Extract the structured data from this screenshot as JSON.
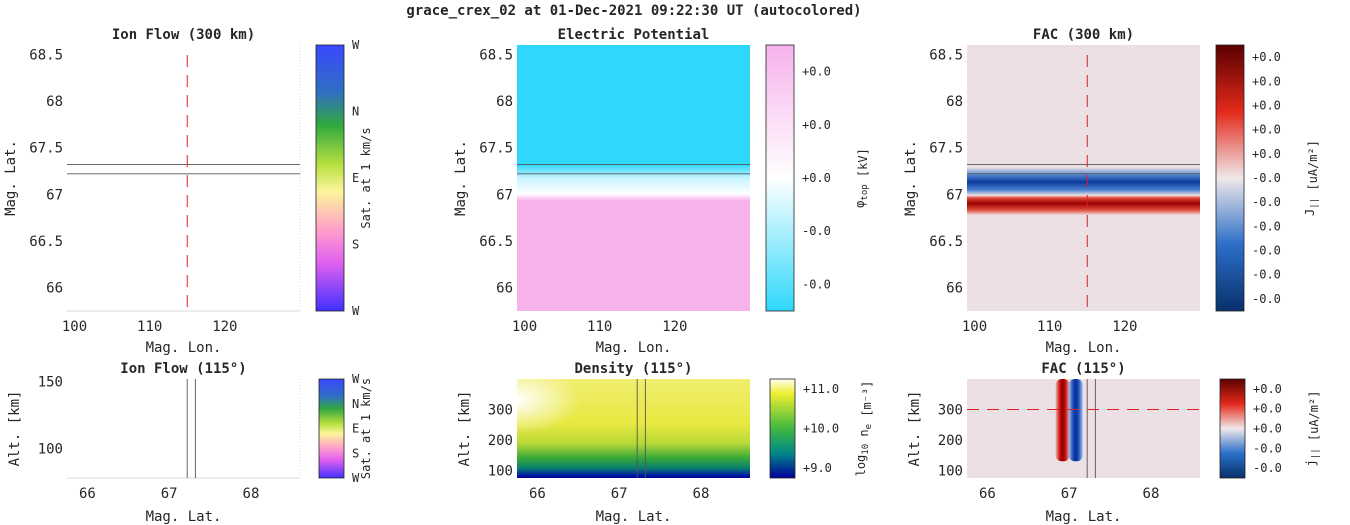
{
  "figure_title": "grace_crex_02 at 01-Dec-2021 09:22:30 UT (autocolored)",
  "colors": {
    "electric_potential": [
      "#2ed8fb",
      "#ffffff",
      "#f7b2ec"
    ],
    "fac": [
      "#08306b",
      "#2c6fc9",
      "#f0e1e6",
      "#e3291a",
      "#5a0000"
    ],
    "density": [
      "#0000a0",
      "#008080",
      "#28b428",
      "#e6e64a",
      "#ffffff"
    ],
    "flow": [
      "#4040ff",
      "#3060d0",
      "#30a030",
      "#f8f080",
      "#ff80c0",
      "#c040ff",
      "#4040ff"
    ],
    "track": "#555555",
    "cut_line": "#e02020"
  },
  "chart_data": [
    {
      "id": "ion-flow-300",
      "type": "quiver",
      "title": "Ion Flow (300 km)",
      "xlabel": "Mag. Lon.",
      "ylabel": "Mag. Lat.",
      "xticks": [
        "100",
        "110",
        "120"
      ],
      "yticks": [
        "66",
        "66.5",
        "67",
        "67.5",
        "68",
        "68.5"
      ],
      "xlim": [
        99,
        130
      ],
      "ylim": [
        65.75,
        68.6
      ],
      "track_lat": [
        67.22,
        67.32
      ],
      "cut_lon": 115,
      "colorbar": {
        "ticks": [
          "W",
          "N",
          "E",
          "S",
          "W"
        ],
        "label": "Sat. at 1 km/s"
      }
    },
    {
      "id": "electric-potential",
      "type": "heatmap",
      "title": "Electric Potential",
      "xlabel": "Mag. Lon.",
      "ylabel": "Mag. Lat.",
      "xticks": [
        "100",
        "110",
        "120"
      ],
      "yticks": [
        "66",
        "66.5",
        "67",
        "67.5",
        "68",
        "68.5"
      ],
      "xlim": [
        99,
        130
      ],
      "ylim": [
        65.75,
        68.6
      ],
      "transition_lat": [
        66.9,
        67.2
      ],
      "track_lat": [
        67.22,
        67.32
      ],
      "colorbar": {
        "ticks": [
          "+0.0",
          "+0.0",
          "+0.0",
          "-0.0",
          "-0.0"
        ],
        "label": "φ",
        "label_sub": "top",
        "label_unit": " [kV]"
      }
    },
    {
      "id": "fac-300",
      "type": "heatmap",
      "title": "FAC (300 km)",
      "xlabel": "Mag. Lon.",
      "ylabel": "Mag. Lat.",
      "xticks": [
        "100",
        "110",
        "120"
      ],
      "yticks": [
        "66",
        "66.5",
        "67",
        "67.5",
        "68",
        "68.5"
      ],
      "xlim": [
        99,
        130
      ],
      "ylim": [
        65.75,
        68.6
      ],
      "negative_band_lat": 67.08,
      "positive_band_lat": 66.9,
      "track_lat": [
        67.22,
        67.32
      ],
      "cut_lon": 115,
      "colorbar": {
        "ticks": [
          "+0.0",
          "+0.0",
          "+0.0",
          "+0.0",
          "+0.0",
          "-0.0",
          "-0.0",
          "-0.0",
          "-0.0",
          "-0.0",
          "-0.0"
        ],
        "label": "J",
        "label_sub": "||",
        "label_unit": " [uA/m²]"
      }
    },
    {
      "id": "ion-flow-115",
      "type": "quiver",
      "title": "Ion Flow (115°)",
      "xlabel": "Mag. Lat.",
      "ylabel": "Alt. [km]",
      "xticks": [
        "66",
        "67",
        "68"
      ],
      "yticks": [
        "100",
        "150"
      ],
      "xlim": [
        65.75,
        68.6
      ],
      "ylim": [
        78,
        152
      ],
      "track_lat": [
        67.22,
        67.32
      ],
      "colorbar": {
        "ticks": [
          "W",
          "N",
          "E",
          "S",
          "W"
        ],
        "label": "Sat. at 1 km/s"
      }
    },
    {
      "id": "density-115",
      "type": "heatmap",
      "title": "Density (115°)",
      "xlabel": "Mag. Lat.",
      "ylabel": "Alt. [km]",
      "xticks": [
        "66",
        "67",
        "68"
      ],
      "yticks": [
        "100",
        "200",
        "300"
      ],
      "xlim": [
        65.75,
        68.6
      ],
      "ylim": [
        75,
        400
      ],
      "track_lat": [
        67.22,
        67.32
      ],
      "colorbar": {
        "ticks": [
          "+11.0",
          "+10.0",
          "+9.0"
        ],
        "label": "log",
        "label_sub": "10",
        "label_unit": " n",
        "label_sub2": "e",
        "label_tail": " [m⁻³]"
      }
    },
    {
      "id": "fac-115",
      "type": "heatmap",
      "title": "FAC (115°)",
      "xlabel": "Mag. Lat.",
      "ylabel": "Alt. [km]",
      "xticks": [
        "66",
        "67",
        "68"
      ],
      "yticks": [
        "100",
        "200",
        "300"
      ],
      "xlim": [
        65.75,
        68.6
      ],
      "ylim": [
        75,
        400
      ],
      "positive_band_lat": 66.92,
      "negative_band_lat": 67.08,
      "track_lat": [
        67.22,
        67.32
      ],
      "cut_alt": 300,
      "colorbar": {
        "ticks": [
          "+0.0",
          "+0.0",
          "+0.0",
          "-0.0",
          "-0.0"
        ],
        "label": "j",
        "label_sub": "||",
        "label_unit": " [uA/m²]"
      }
    }
  ]
}
